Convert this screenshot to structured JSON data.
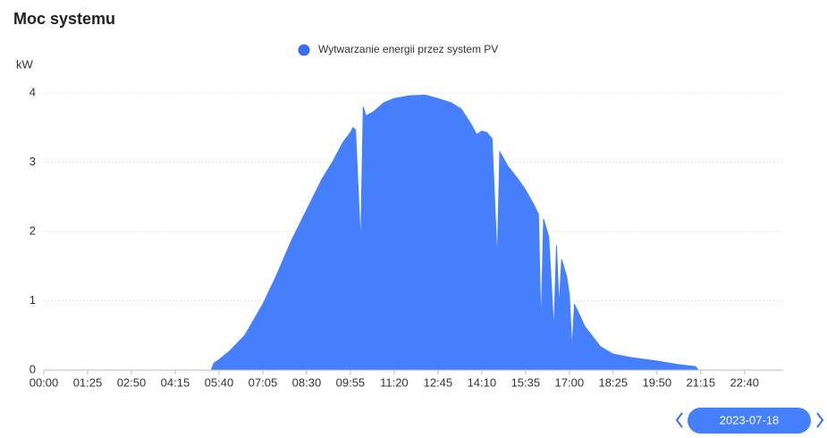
{
  "title": "Moc systemu",
  "date_picker": {
    "date": "2023-07-18"
  },
  "chart_data": {
    "type": "area",
    "legend": {
      "name": "Wytwarzanie energii przez system PV",
      "position": "top"
    },
    "y_unit": "kW",
    "color": "#467ffb",
    "x": [
      "00:00",
      "05:25",
      "05:30",
      "05:40",
      "06:00",
      "06:30",
      "07:05",
      "07:30",
      "08:00",
      "08:30",
      "09:00",
      "09:20",
      "09:40",
      "09:55",
      "10:00",
      "10:05",
      "10:15",
      "10:20",
      "10:25",
      "10:40",
      "11:00",
      "11:20",
      "11:50",
      "12:20",
      "12:45",
      "13:10",
      "13:30",
      "13:50",
      "14:00",
      "14:10",
      "14:20",
      "14:30",
      "14:40",
      "14:45",
      "15:00",
      "15:20",
      "15:35",
      "15:50",
      "16:00",
      "16:05",
      "16:10",
      "16:20",
      "16:30",
      "16:35",
      "16:40",
      "16:45",
      "16:55",
      "17:00",
      "17:05",
      "17:10",
      "17:30",
      "18:00",
      "18:25",
      "19:00",
      "19:50",
      "20:30",
      "21:05",
      "21:10"
    ],
    "values": [
      0,
      0,
      0.1,
      0.15,
      0.27,
      0.5,
      0.95,
      1.34,
      1.86,
      2.31,
      2.76,
      3.0,
      3.28,
      3.43,
      3.5,
      3.47,
      1.8,
      3.8,
      3.67,
      3.73,
      3.86,
      3.92,
      3.96,
      3.97,
      3.92,
      3.86,
      3.77,
      3.54,
      3.4,
      3.45,
      3.43,
      3.34,
      1.57,
      3.15,
      2.95,
      2.76,
      2.6,
      2.4,
      2.25,
      0.6,
      2.18,
      1.92,
      0.55,
      1.8,
      0.9,
      1.6,
      1.34,
      1.08,
      0.3,
      0.95,
      0.63,
      0.34,
      0.23,
      0.18,
      0.13,
      0.08,
      0.05,
      0
    ],
    "xlim": [
      "00:00",
      "23:55"
    ],
    "xticks": [
      "00:00",
      "01:25",
      "02:50",
      "04:15",
      "05:40",
      "07:05",
      "08:30",
      "09:55",
      "11:20",
      "12:45",
      "14:10",
      "15:35",
      "17:00",
      "18:25",
      "19:50",
      "21:15",
      "22:40"
    ],
    "ylim": [
      0,
      4
    ],
    "yticks": [
      0,
      1,
      2,
      3,
      4
    ],
    "grid": true
  }
}
